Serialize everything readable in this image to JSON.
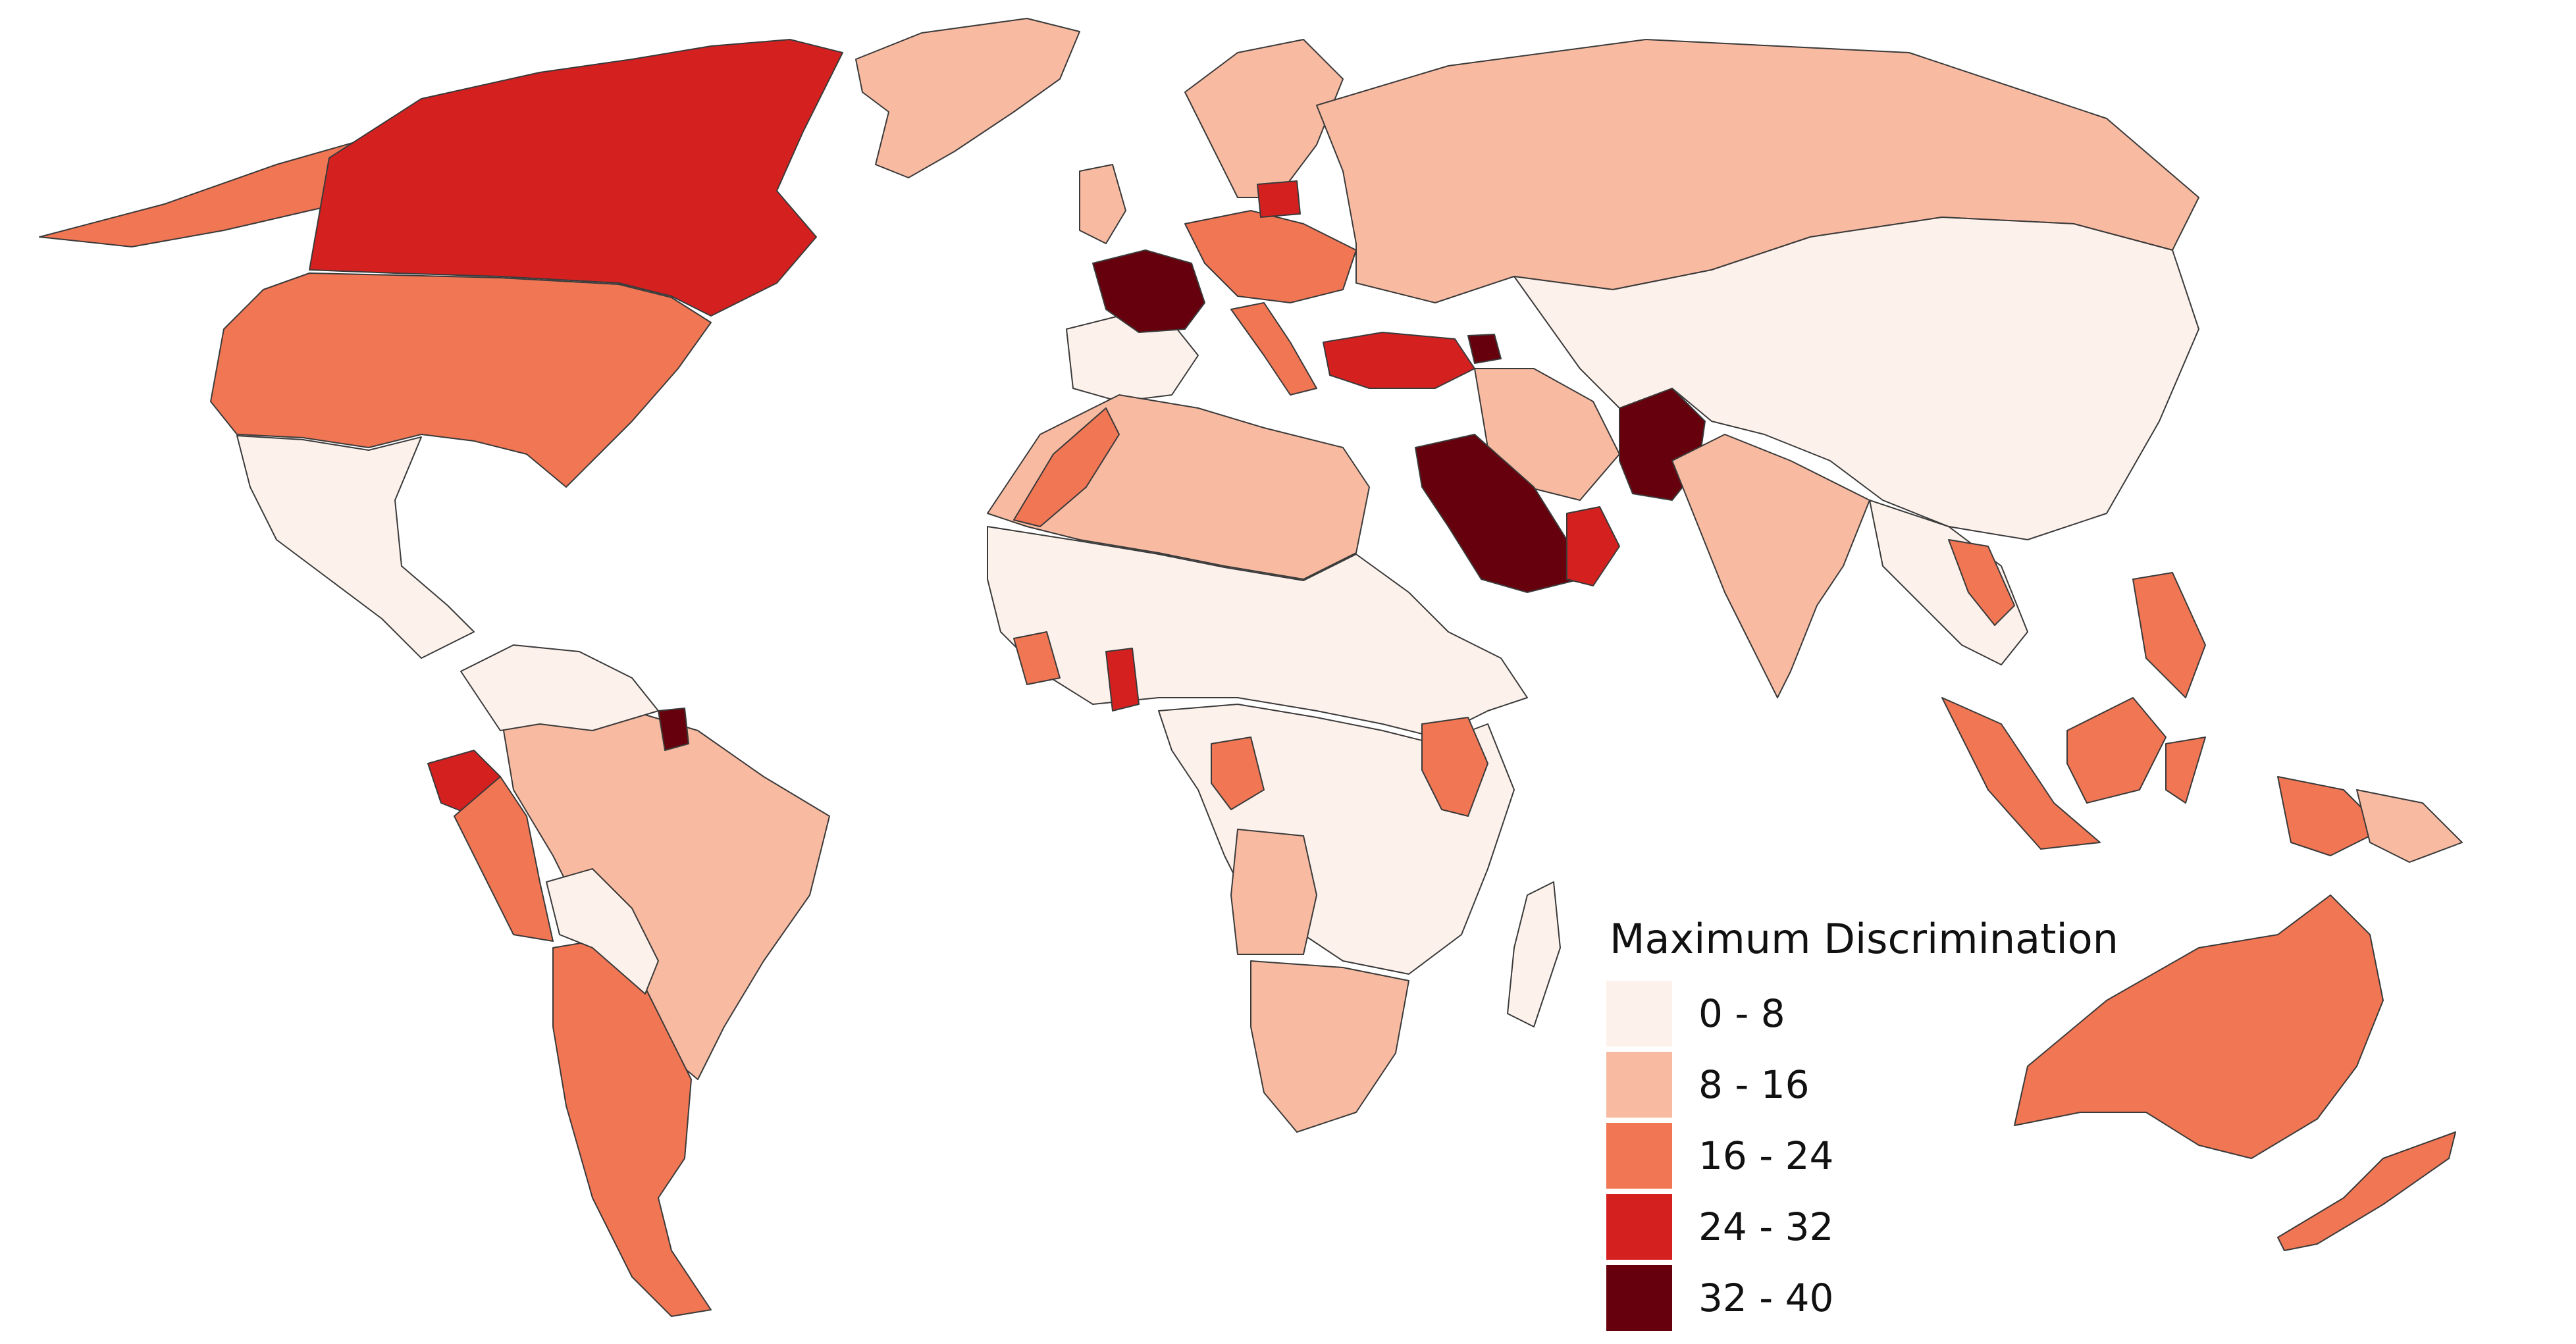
{
  "legend": {
    "title": "Maximum Discrimination",
    "classes": [
      {
        "label": "0 - 8",
        "color": "#fdf1eb"
      },
      {
        "label": "8 - 16",
        "color": "#f8bba2"
      },
      {
        "label": "16 - 24",
        "color": "#f07654"
      },
      {
        "label": "24 - 32",
        "color": "#d52020"
      },
      {
        "label": "32 - 40",
        "color": "#67000d"
      }
    ]
  }
}
